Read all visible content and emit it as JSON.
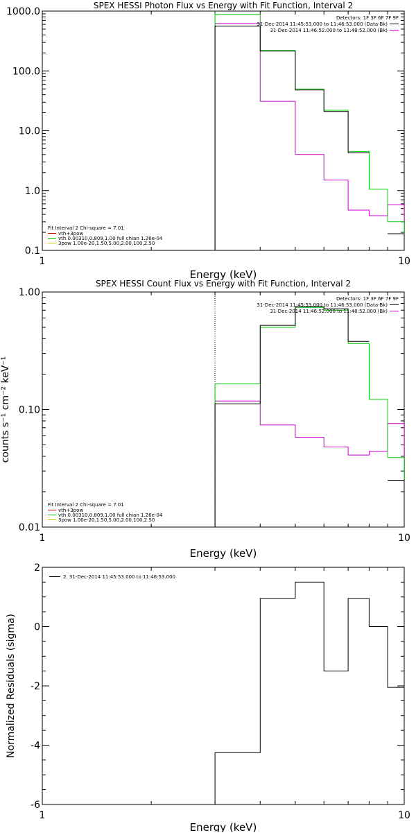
{
  "chart_data": [
    {
      "type": "line",
      "title": "SPEX HESSI Photon Flux vs Energy with Fit Function, Interval 2",
      "xlabel": "Energy (keV)",
      "ylabel": "",
      "xscale": "log",
      "yscale": "log",
      "xlim": [
        1,
        10
      ],
      "ylim": [
        0.1,
        1000
      ],
      "xticks": [
        {
          "v": 1,
          "label": "1"
        },
        {
          "v": 10,
          "label": "10"
        }
      ],
      "yticks": [
        {
          "v": 1000,
          "label": "1000.0"
        },
        {
          "v": 100,
          "label": "100.0"
        },
        {
          "v": 10,
          "label": "10.0"
        },
        {
          "v": 1,
          "label": "1.0"
        },
        {
          "v": 0.1,
          "label": "0.1"
        }
      ],
      "vline": {
        "x": 3,
        "color": "#00aa00",
        "style": "dotted"
      },
      "legend_top": {
        "position": "top-right",
        "header": "Detectors: 1F 3F 6F 7F 9F",
        "items": [
          {
            "text": "31-Dec-2014 11:45:53.000 to 11:46:53.000 (Data-Bk)",
            "color": "#000000"
          },
          {
            "text": "31-Dec-2014 11:46:52.000 to 11:48:52.000 (Bk)",
            "color": "#cc00cc"
          }
        ]
      },
      "legend_bottom": {
        "position": "bottom-left",
        "header": "Fit Interval 2   Chi-square = 7.01",
        "items": [
          {
            "text": "vth+3pow",
            "color": "#cc0000"
          },
          {
            "text": "vth 0.00310,0.809,1.00  full chian 1.26e-04",
            "color": "#00cc00"
          },
          {
            "text": "3pow 1.00e-20,1.50,5.00,2.00,100,2.50",
            "color": "#cccc00"
          }
        ]
      },
      "bin_edges": [
        3,
        4,
        5,
        6,
        7,
        8,
        9,
        10
      ],
      "series": [
        {
          "color": "#cc00cc",
          "values": [
            620,
            31,
            4.0,
            1.5,
            0.47,
            0.38,
            0.58
          ]
        },
        {
          "color": "#00cc00",
          "values": [
            880,
            220,
            50,
            22,
            4.5,
            1.05,
            0.3
          ]
        },
        {
          "color": "#000000",
          "values": [
            560,
            215,
            48,
            21,
            4.3,
            null,
            0.19
          ]
        }
      ]
    },
    {
      "type": "line",
      "title": "SPEX HESSI Count Flux vs Energy with Fit Function, Interval 2",
      "xlabel": "Energy (keV)",
      "ylabel": "counts s⁻¹ cm⁻² keV⁻¹",
      "xscale": "log",
      "yscale": "log",
      "xlim": [
        1,
        10
      ],
      "ylim": [
        0.01,
        1
      ],
      "xticks": [
        {
          "v": 1,
          "label": "1"
        },
        {
          "v": 10,
          "label": "10"
        }
      ],
      "yticks": [
        {
          "v": 1,
          "label": "1.00"
        },
        {
          "v": 0.1,
          "label": "0.10"
        },
        {
          "v": 0.01,
          "label": "0.01"
        }
      ],
      "vline": {
        "x": 3,
        "color": "#000000",
        "style": "dotted"
      },
      "legend_top": {
        "position": "top-right",
        "header": "Detectors: 1F 3F 6F 7F 9F",
        "items": [
          {
            "text": "31-Dec-2014 11:45:53.000 to 11:46:53.000 (Data-Bk)",
            "color": "#000000"
          },
          {
            "text": "31-Dec-2014 11:46:52.000 to 11:48:52.000 (Bk)",
            "color": "#cc00cc"
          }
        ]
      },
      "legend_bottom": {
        "position": "bottom-left",
        "header": "Fit Interval 2   Chi-square = 7.01",
        "items": [
          {
            "text": "vth+3pow",
            "color": "#cc0000"
          },
          {
            "text": "vth 0.00310,0.809,1.00  full chian 1.26e-04",
            "color": "#00cc00"
          },
          {
            "text": "3pow 1.00e-20,1.50,5.00,2.00,100,2.50",
            "color": "#cccc00"
          }
        ]
      },
      "bin_edges": [
        3,
        4,
        5,
        6,
        7,
        8,
        9,
        10
      ],
      "series": [
        {
          "color": "#cc00cc",
          "values": [
            0.118,
            0.074,
            0.058,
            0.048,
            0.041,
            0.044,
            0.076
          ]
        },
        {
          "color": "#00cc00",
          "values": [
            0.165,
            0.5,
            0.74,
            0.7,
            0.365,
            0.122,
            0.039
          ]
        },
        {
          "color": "#000000",
          "values": [
            0.112,
            0.52,
            0.75,
            0.72,
            0.38,
            null,
            0.025
          ]
        }
      ]
    },
    {
      "type": "line",
      "title": "",
      "xlabel": "Energy (keV)",
      "ylabel": "Normalized Residuals (sigma)",
      "xscale": "log",
      "yscale": "linear",
      "xlim": [
        1,
        10
      ],
      "ylim": [
        -6,
        2
      ],
      "xticks": [
        {
          "v": 1,
          "label": "1"
        },
        {
          "v": 10,
          "label": "10"
        }
      ],
      "yticks": [
        {
          "v": 2,
          "label": "2"
        },
        {
          "v": 0,
          "label": "0"
        },
        {
          "v": -2,
          "label": "-2"
        },
        {
          "v": -4,
          "label": "-4"
        },
        {
          "v": -6,
          "label": "-6"
        }
      ],
      "legend_top": {
        "position": "top-left",
        "header": "",
        "items": [
          {
            "text": "2. 31-Dec-2014 11:45:53.000 to 11:46:53.000",
            "color": "#000000"
          }
        ]
      },
      "bin_edges": [
        3,
        4,
        5,
        6,
        7,
        8,
        9,
        10
      ],
      "series": [
        {
          "color": "#000000",
          "values": [
            -4.25,
            0.95,
            1.5,
            -1.5,
            0.95,
            0.0,
            -2.05
          ]
        }
      ]
    }
  ]
}
